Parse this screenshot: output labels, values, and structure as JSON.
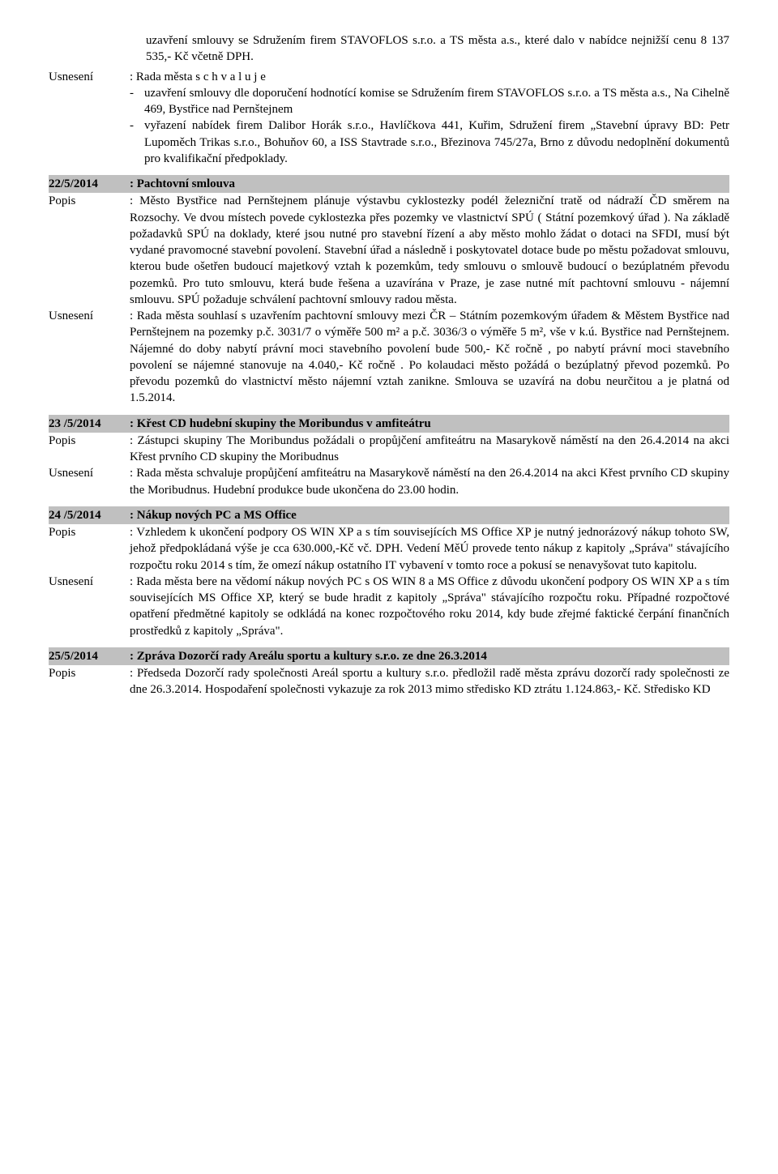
{
  "intro": {
    "para1": "uzavření smlouvy se Sdružením firem STAVOFLOS s.r.o. a TS města a.s., které dalo v nabídce nejnižší cenu  8 137 535,- Kč včetně DPH.",
    "usneseni_label": "Usnesení",
    "usneseni_lead": ": Rada města  s c h v a l u j e",
    "bullet1": "uzavření smlouvy dle doporučení hodnotící komise se Sdružením firem STAVOFLOS s.r.o.  a TS města a.s., Na Cihelně 469, Bystřice nad Pernštejnem",
    "bullet2": "vyřazení nabídek firem Dalibor Horák s.r.o., Havlíčkova 441, Kuřim, Sdružení firem „Stavební úpravy BD: Petr Lupoměch Trikas s.r.o., Bohuňov 60,   a ISS Stavtrade s.r.o., Březinova 745/27a, Brno z důvodu nedoplnění dokumentů pro kvalifikační předpoklady."
  },
  "s22": {
    "num": "22/5/2014",
    "title": ": Pachtovní smlouva",
    "popis_label": "Popis",
    "popis": ": Město Bystřice nad Pernštejnem plánuje výstavbu cyklostezky podél železniční tratě od nádraží ČD směrem na Rozsochy. Ve dvou místech povede cyklostezka  přes pozemky  ve vlastnictví SPÚ ( Státní pozemkový úřad ). Na základě  požadavků SPÚ na  doklady, které jsou nutné pro stavební řízení a aby město mohlo  žádat o dotaci na SFDI, musí být vydané pravomocné stavební povolení. Stavební úřad  a následně i poskytovatel dotace bude po městu požadovat  smlouvu, kterou bude ošetřen budoucí majetkový vztah k pozemkům, tedy smlouvu o smlouvě budoucí o bezúplatném převodu pozemků. Pro tuto smlouvu, která bude řešena a uzavírána v Praze, je zase nutné mít pachtovní smlouvu  - nájemní smlouvu.  SPÚ požaduje schválení pachtovní smlouvy radou města.",
    "usneseni_label": "Usnesení",
    "usneseni": ": Rada města souhlasí s uzavřením pachtovní  smlouvy mezi  ČR – Státním pozemkovým úřadem & Městem Bystřice nad Pernštejnem na pozemky p.č. 3031/7 o výměře 500 m² a p.č. 3036/3 o výměře 5 m², vše v k.ú. Bystřice nad Pernštejnem. Nájemné  do doby nabytí právní moci stavebního povolení bude 500,- Kč ročně , po nabytí právní moci stavebního povolení  se nájemné stanovuje na 4.040,- Kč ročně . Po kolaudaci  město požádá o bezúplatný převod pozemků. Po převodu pozemků do vlastnictví město nájemní vztah zanikne. Smlouva se uzavírá na dobu neurčitou a  je platná od 1.5.2014."
  },
  "s23": {
    "num": "23 /5/2014",
    "title": ": Křest CD  hudební skupiny the Moribundus v amfiteátru",
    "popis_label": "Popis",
    "popis": ": Zástupci skupiny The Moribundus požádali o propůjčení amfiteátru na Masarykově náměstí na den 26.4.2014 na akci Křest prvního CD skupiny the Moribudnus",
    "usneseni_label": "Usnesení",
    "usneseni": ": Rada města schvaluje propůjčení amfiteátru na Masarykově náměstí na den 26.4.2014 na akci Křest prvního CD skupiny the Moribudnus. Hudební produkce bude ukončena do 23.00 hodin."
  },
  "s24": {
    "num": "24 /5/2014",
    "title": ": Nákup nových PC a MS Office",
    "popis_label": "Popis",
    "popis": ": Vzhledem k ukončení podpory OS WIN XP a s tím souvisejících MS Office XP je nutný jednorázový nákup tohoto SW, jehož předpokládaná výše je cca 630.000,-Kč vč. DPH. Vedení MěÚ provede tento nákup z kapitoly „Správa\" stávajícího rozpočtu roku 2014 s tím, že omezí nákup ostatního IT vybavení v tomto roce a pokusí se nenavyšovat tuto kapitolu.",
    "usneseni_label": "Usnesení",
    "usneseni": ": Rada města bere na vědomí nákup nových PC s OS WIN 8 a MS Office z důvodu ukončení podpory OS WIN XP a s tím souvisejících MS Office XP, který se bude hradit z kapitoly „Správa\" stávajícího rozpočtu roku. Případné rozpočtové opatření předmětné kapitoly se odkládá na konec rozpočtového roku 2014, kdy bude zřejmé faktické čerpání  finančních prostředků z kapitoly „Správa\"."
  },
  "s25": {
    "num": "25/5/2014",
    "title": ": Zpráva Dozorčí rady Areálu sportu a kultury s.r.o. ze dne 26.3.2014",
    "popis_label": "Popis",
    "popis": ": Předseda Dozorčí rady společnosti Areál sportu a kultury s.r.o. předložil radě města zprávu dozorčí rady společnosti ze dne 26.3.2014.  Hospodaření společnosti vykazuje za rok 2013 mimo středisko KD ztrátu 1.124.863,- Kč. Středisko KD"
  }
}
